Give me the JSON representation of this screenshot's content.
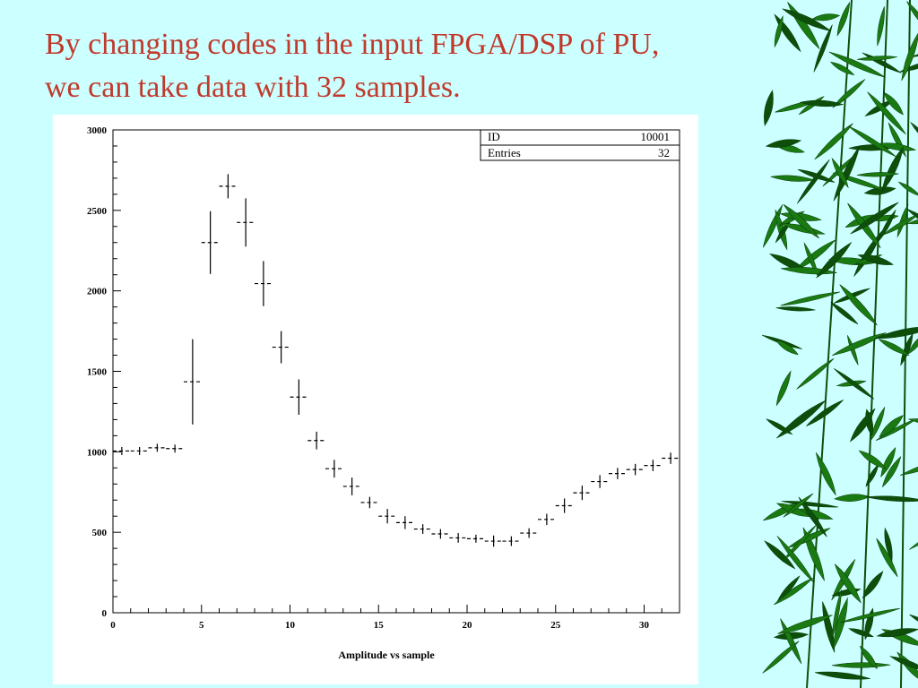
{
  "slide": {
    "title_line1": "By changing codes in the input FPGA/DSP of PU,",
    "title_line2": "we can take data with 32 samples."
  },
  "colors": {
    "background": "#ccffff",
    "title": "#c0392b",
    "bamboo_leaf": "#1a7a12",
    "bamboo_leaf_dark": "#0d4f0a"
  },
  "chart_data": {
    "type": "scatter",
    "title": "",
    "xlabel": "Amplitude vs sample",
    "ylabel": "",
    "xlim": [
      0,
      32
    ],
    "ylim": [
      0,
      3000
    ],
    "grid": false,
    "x_ticks": [
      "0",
      "5",
      "10",
      "15",
      "20",
      "25",
      "30"
    ],
    "y_ticks": [
      "0",
      "500",
      "1000",
      "1500",
      "2000",
      "2500",
      "3000"
    ],
    "stats_box": {
      "id_label": "ID",
      "id_value": "10001",
      "entries_label": "Entries",
      "entries_value": "32"
    },
    "series": [
      {
        "x": [
          0.5,
          1.5,
          2.5,
          3.5,
          4.5,
          5.5,
          6.5,
          7.5,
          8.5,
          9.5,
          10.5,
          11.5,
          12.5,
          13.5,
          14.5,
          15.5,
          16.5,
          17.5,
          18.5,
          19.5,
          20.5,
          21.5,
          22.5,
          23.5,
          24.5,
          25.5,
          26.5,
          27.5,
          28.5,
          29.5,
          30.5,
          31.5
        ],
        "y": [
          1005,
          1005,
          1025,
          1020,
          1435,
          2300,
          2650,
          2425,
          2045,
          1650,
          1340,
          1070,
          895,
          785,
          685,
          600,
          560,
          520,
          490,
          465,
          460,
          445,
          445,
          495,
          580,
          665,
          745,
          815,
          865,
          890,
          915,
          960
        ],
        "err": [
          25,
          25,
          25,
          25,
          265,
          195,
          75,
          150,
          140,
          100,
          110,
          55,
          55,
          55,
          35,
          45,
          40,
          30,
          30,
          30,
          25,
          35,
          30,
          30,
          35,
          45,
          45,
          40,
          35,
          35,
          35,
          35
        ]
      }
    ]
  }
}
